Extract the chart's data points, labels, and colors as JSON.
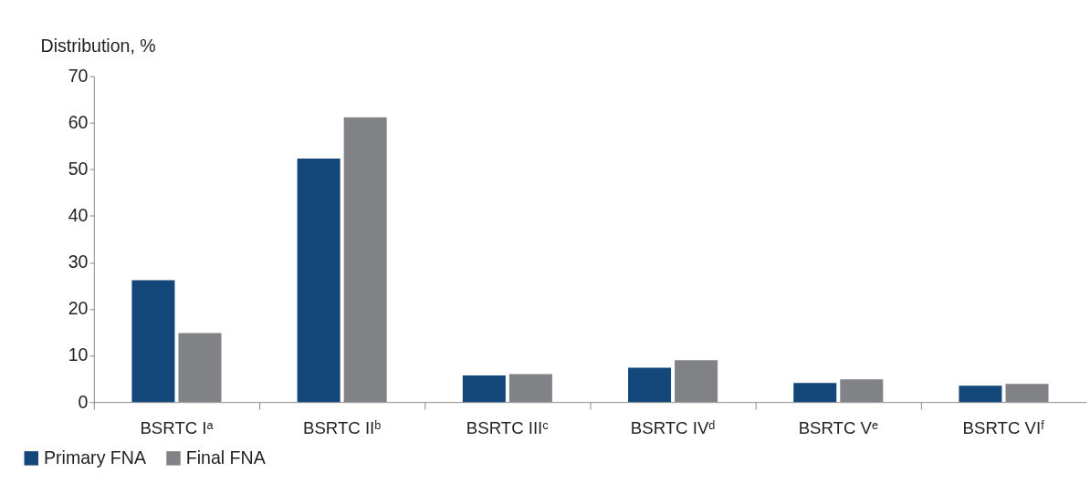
{
  "chart_data": {
    "type": "bar",
    "ylabel": "Distribution, %",
    "categories": [
      "BSRTC Iᵃ",
      "BSRTC IIᵇ",
      "BSRTC IIIᶜ",
      "BSRTC IVᵈ",
      "BSRTC Vᵉ",
      "BSRTC VIᶠ"
    ],
    "series": [
      {
        "name": "Primary FNA",
        "color": "#134679",
        "values": [
          26.2,
          52.3,
          5.7,
          7.4,
          4.1,
          3.5
        ]
      },
      {
        "name": "Final FNA",
        "color": "#818286",
        "values": [
          14.8,
          61.2,
          6.0,
          9.0,
          4.9,
          3.9
        ]
      }
    ],
    "ylim": [
      0,
      70
    ],
    "yticks": [
      0,
      10,
      20,
      30,
      40,
      50,
      60,
      70
    ],
    "grid": false,
    "legend": "bottom left"
  }
}
